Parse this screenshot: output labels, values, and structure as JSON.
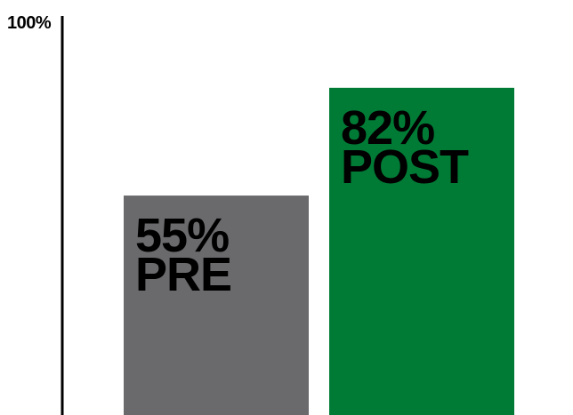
{
  "chart_data": {
    "type": "bar",
    "categories": [
      "PRE",
      "POST"
    ],
    "values": [
      55,
      82
    ],
    "value_labels": [
      "55%",
      "82%"
    ],
    "y_axis_max_label": "100%",
    "ylim": [
      0,
      100
    ],
    "colors": [
      "#6a696c",
      "#007b35"
    ],
    "axis_color": "#000000",
    "grid": false,
    "legend": "none"
  }
}
